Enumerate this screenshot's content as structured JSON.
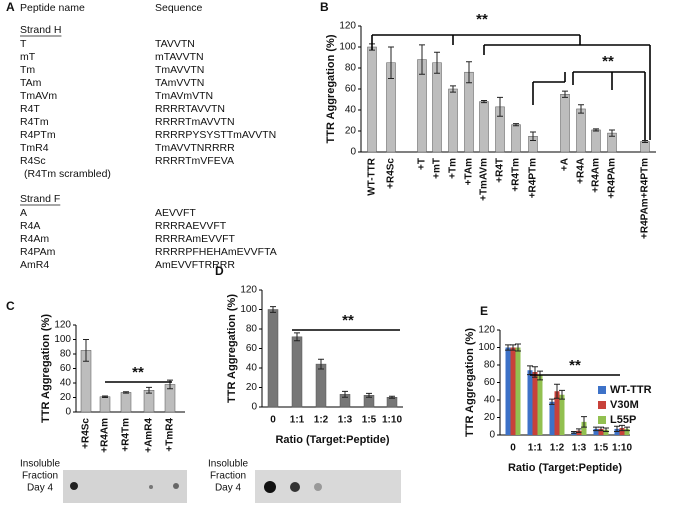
{
  "panel_a": {
    "label": "A",
    "headers": [
      "Peptide name",
      "Sequence"
    ],
    "sections": [
      {
        "title": "Strand H",
        "rows": [
          [
            "T",
            "TAVVTN"
          ],
          [
            "mT",
            "mTAVVTN"
          ],
          [
            "Tm",
            "TmAVVTN"
          ],
          [
            "TAm",
            "TAmVVTN"
          ],
          [
            "TmAVm",
            "TmAVmVTN"
          ],
          [
            "R4T",
            "RRRRTAVVTN"
          ],
          [
            "R4Tm",
            "RRRRTmAVVTN"
          ],
          [
            "R4PTm",
            "RRRRPYSYSTTmAVVTN"
          ],
          [
            "TmR4",
            "TmAVVTNRRRR"
          ],
          [
            "R4Sc",
            "RRRRTmVFEVA"
          ]
        ],
        "note": "(R4Tm scrambled)"
      },
      {
        "title": "Strand F",
        "rows": [
          [
            "A",
            "AEVVFT"
          ],
          [
            "R4A",
            "RRRRAEVVFT"
          ],
          [
            "R4Am",
            "RRRRAmEVVFT"
          ],
          [
            "R4PAm",
            "RRRRPFHEHAmEVVFTA"
          ],
          [
            "AmR4",
            "AmEVVFTRRRR"
          ]
        ]
      }
    ]
  },
  "blot_label": [
    "Insoluble",
    "Fraction",
    "Day 4"
  ],
  "chart_data": [
    {
      "type": "bar",
      "panel": "B",
      "y_label": "TTR Aggregation (%)",
      "color": "#bdbdbd",
      "categories": [
        "WT-TTR",
        "+R4Sc",
        "+T",
        "+mT",
        "+Tm",
        "+TAm",
        "+TmAVm",
        "+R4T",
        "+R4Tm",
        "+R4PTm",
        "+A",
        "+R4A",
        "+R4Am",
        "+R4PAm",
        "+R4PAm+R4PTm"
      ],
      "values": [
        100,
        85,
        88,
        85,
        60,
        76,
        48,
        43,
        26,
        15,
        55,
        41,
        21,
        18,
        10
      ],
      "errors": [
        3,
        15,
        14,
        10,
        3,
        10,
        1,
        9,
        1,
        4,
        3,
        4,
        1,
        3,
        1
      ],
      "ylim": [
        0,
        120
      ],
      "yticks": [
        0,
        20,
        40,
        60,
        80,
        100,
        120
      ],
      "annotations": [
        "**",
        "**"
      ]
    },
    {
      "type": "bar",
      "panel": "C",
      "y_label": "TTR Aggregation (%)",
      "color": "#bdbdbd",
      "categories": [
        "+R4Sc",
        "+R4Am",
        "+R4Tm",
        "+AmR4",
        "+TmR4"
      ],
      "values": [
        85,
        21,
        27,
        30,
        38
      ],
      "errors": [
        15,
        1,
        1,
        4,
        6
      ],
      "ylim": [
        0,
        120
      ],
      "yticks": [
        0,
        20,
        40,
        60,
        80,
        100,
        120
      ],
      "annotations": [
        "**"
      ]
    },
    {
      "type": "bar",
      "panel": "D",
      "y_label": "TTR Aggregation (%)",
      "x_label": "Ratio (Target:Peptide)",
      "color": "#777777",
      "categories": [
        "0",
        "1:1",
        "1:2",
        "1:3",
        "1:5",
        "1:10"
      ],
      "values": [
        100,
        72,
        44,
        13,
        12,
        10
      ],
      "errors": [
        3,
        4,
        5,
        3,
        2,
        1
      ],
      "ylim": [
        0,
        120
      ],
      "yticks": [
        0,
        20,
        40,
        60,
        80,
        100,
        120
      ],
      "annotations": [
        "**"
      ]
    },
    {
      "type": "grouped_bar",
      "panel": "E",
      "y_label": "TTR Aggregation (%)",
      "x_label": "Ratio (Target:Peptide)",
      "categories": [
        "0",
        "1:1",
        "1:2",
        "1:3",
        "1:5",
        "1:10"
      ],
      "series": [
        {
          "name": "WT-TTR",
          "color": "#3d72c8",
          "values": [
            100,
            74,
            38,
            3,
            7,
            7
          ],
          "errors": [
            3,
            5,
            3,
            1,
            2,
            3
          ]
        },
        {
          "name": "V30M",
          "color": "#c8413a",
          "values": [
            100,
            72,
            50,
            5,
            7,
            8
          ],
          "errors": [
            3,
            6,
            8,
            2,
            2,
            3
          ]
        },
        {
          "name": "L55P",
          "color": "#92c050",
          "values": [
            100,
            68,
            46,
            15,
            6,
            7
          ],
          "errors": [
            4,
            5,
            5,
            6,
            2,
            2
          ]
        }
      ],
      "ylim": [
        0,
        120
      ],
      "yticks": [
        0,
        20,
        40,
        60,
        80,
        100,
        120
      ],
      "annotations": [
        "**"
      ]
    }
  ]
}
